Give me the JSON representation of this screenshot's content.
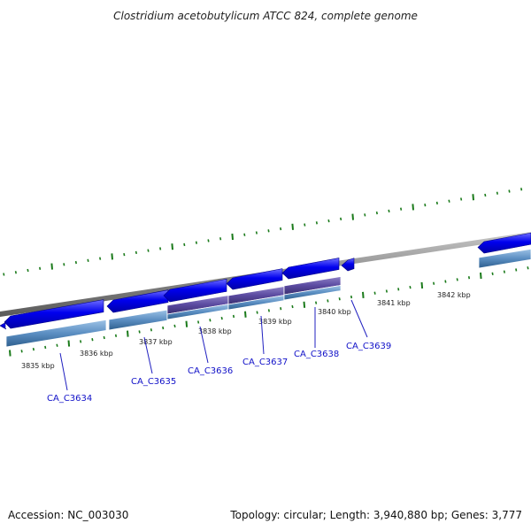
{
  "title": "Clostridium acetobutylicum ATCC 824, complete genome",
  "footer": {
    "accession": "Accession: NC_003030",
    "summary": "Topology: circular; Length: 3,940,880 bp; Genes: 3,777"
  },
  "colors": {
    "gene": "#0000ee",
    "cds_track": "#5b8ec2",
    "cds_track_selected": "#5a4aa0",
    "tick": "#1a7a1a",
    "backbone": "#8a8a8a",
    "label": "#1010c8"
  },
  "ruler_labels": [
    "3835 kbp",
    "3836 kbp",
    "3837 kbp",
    "3838 kbp",
    "3839 kbp",
    "3840 kbp",
    "3841 kbp",
    "3842 kbp"
  ],
  "genes": [
    "CA_C3634",
    "CA_C3635",
    "CA_C3636",
    "CA_C3637",
    "CA_C3638",
    "CA_C3639"
  ]
}
